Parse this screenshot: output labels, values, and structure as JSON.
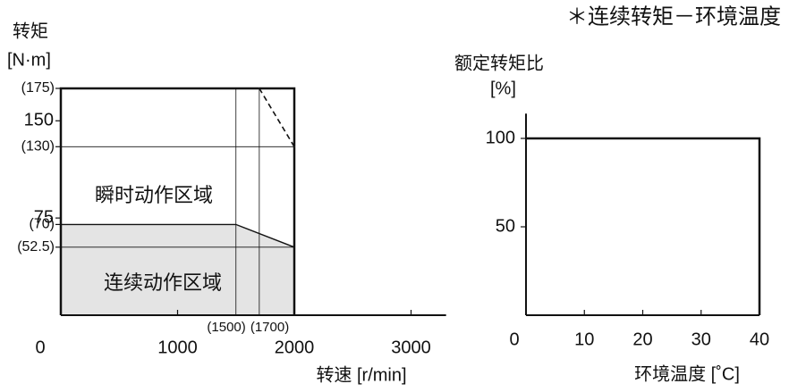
{
  "chart_data": [
    {
      "type": "region",
      "ylabel": "转矩",
      "yunit": "[N·m]",
      "xlabel": "转速 [r/min]",
      "xlim": [
        0,
        3300
      ],
      "ylim": [
        0,
        175
      ],
      "xticks": [
        0,
        1000,
        2000,
        3000
      ],
      "yticks": [
        75,
        150
      ],
      "xticks_minor": [
        {
          "value": 1500,
          "label": "(1500)"
        },
        {
          "value": 1700,
          "label": "(1700)"
        }
      ],
      "yticks_minor": [
        {
          "value": 175,
          "label": "(175)",
          "guide": false
        },
        {
          "value": 130,
          "label": "(130)",
          "guide": true
        },
        {
          "value": 70,
          "label": "(70)",
          "guide": false
        },
        {
          "value": 52.5,
          "label": "(52.5)",
          "guide": true
        }
      ],
      "series": [
        {
          "name": "连续动作区域",
          "x": [
            0,
            0,
            1500,
            2000,
            2000
          ],
          "values": [
            0,
            70,
            70,
            52.5,
            0
          ],
          "color": "#e4e4e4"
        },
        {
          "name": "瞬时动作区域",
          "x": [
            0,
            0,
            1700,
            2000,
            2000
          ],
          "values": [
            0,
            175,
            175,
            130,
            0
          ],
          "color": "#111111"
        }
      ]
    },
    {
      "type": "line",
      "title": "＊连续转矩－环境温度",
      "ylabel": "额定转矩比",
      "yunit": "[%]",
      "xlabel": "环境温度 [˚C]",
      "xlim": [
        0,
        40
      ],
      "ylim": [
        0,
        114
      ],
      "xticks": [
        0,
        10,
        20,
        30,
        40
      ],
      "yticks": [
        50,
        100
      ],
      "x": [
        0,
        40,
        40
      ],
      "values": [
        100,
        100,
        0
      ],
      "color": "#111111"
    }
  ]
}
